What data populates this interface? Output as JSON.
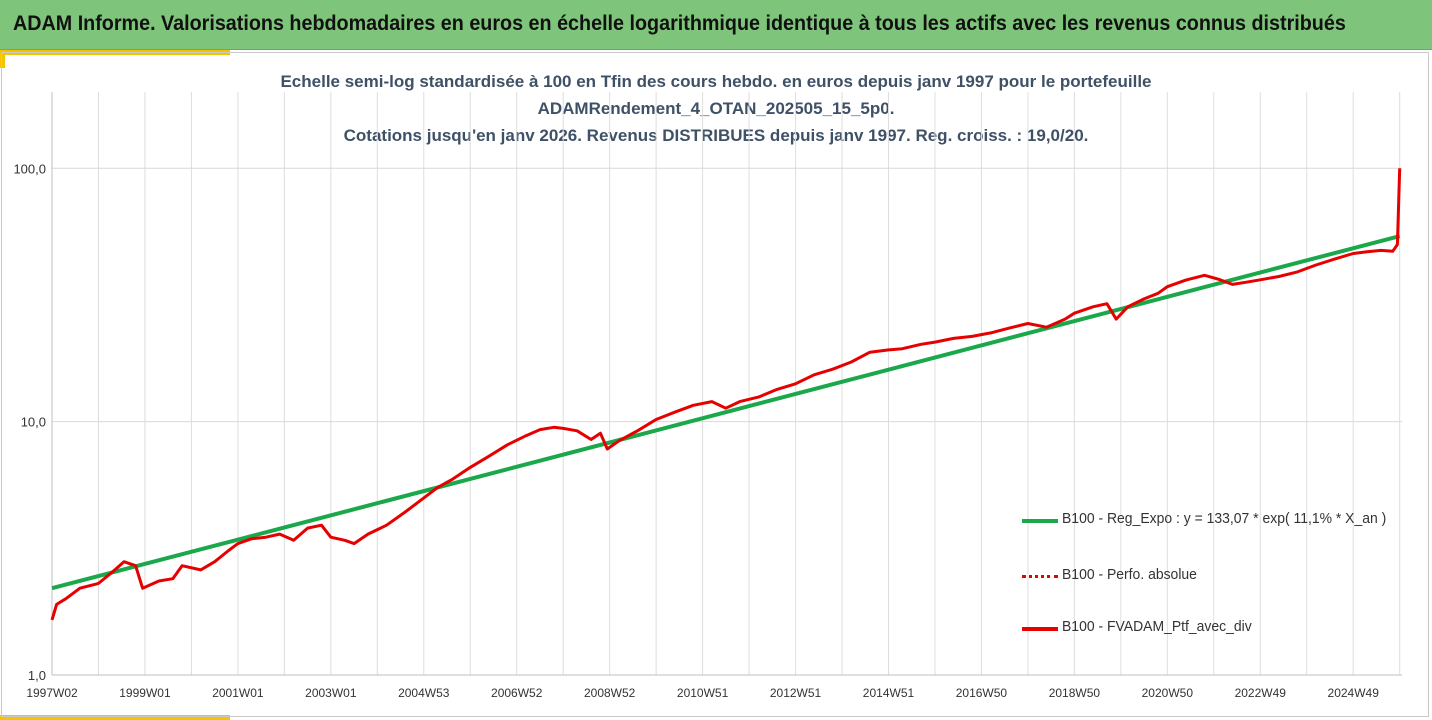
{
  "header": {
    "title": "ADAM Informe. Valorisations hebdomadaires en euros en échelle logarithmique identique à tous les actifs avec les revenus connus distribués"
  },
  "colors": {
    "header_bg": "#7ec47a",
    "accent": "#f5c400",
    "regression": "#1aa84a",
    "series_red": "#e60000"
  },
  "chart_data": {
    "type": "line",
    "title_lines": [
      "Echelle semi-log standardisée à 100 en Tfin des cours hebdo.  en euros depuis janv 1997 pour le portefeuille",
      "ADAMRendement_4_OTAN_202505_15_5p0.",
      "Cotations jusqu'en janv 2026. Revenus DISTRIBUES depuis janv 1997. Reg. croiss. : 19,0/20."
    ],
    "y_scale": "log",
    "ylim": [
      1,
      200
    ],
    "y_ticks": [
      {
        "value": 1,
        "label": "1,0"
      },
      {
        "value": 10,
        "label": "10,0"
      },
      {
        "value": 100,
        "label": "100,0"
      }
    ],
    "x_range": [
      1997.0,
      2026.05
    ],
    "x_ticks": [
      {
        "x": 1997.0,
        "label": "1997W02"
      },
      {
        "x": 1999.0,
        "label": "1999W01"
      },
      {
        "x": 2001.0,
        "label": "2001W01"
      },
      {
        "x": 2003.0,
        "label": "2003W01"
      },
      {
        "x": 2005.0,
        "label": "2004W53"
      },
      {
        "x": 2007.0,
        "label": "2006W52"
      },
      {
        "x": 2009.0,
        "label": "2008W52"
      },
      {
        "x": 2011.0,
        "label": "2010W51"
      },
      {
        "x": 2013.0,
        "label": "2012W51"
      },
      {
        "x": 2015.0,
        "label": "2014W51"
      },
      {
        "x": 2017.0,
        "label": "2016W50"
      },
      {
        "x": 2019.0,
        "label": "2018W50"
      },
      {
        "x": 2021.0,
        "label": "2020W50"
      },
      {
        "x": 2023.0,
        "label": "2022W49"
      },
      {
        "x": 2025.0,
        "label": "2024W49"
      }
    ],
    "grid": {
      "vertical": true,
      "horizontal": true
    },
    "legend_position": "bottom-right",
    "series": [
      {
        "name": "B100 - Reg_Expo : y = 133,07 * exp( 11,1% *  X_an )",
        "style": "solid-green",
        "x": [
          1997.0,
          2026.0
        ],
        "y": [
          2.2,
          54.0
        ]
      },
      {
        "name": "B100 - Perfo. absolue",
        "style": "dotted-red",
        "x": [],
        "y": []
      },
      {
        "name": "B100 - FVADAM_Ptf_avec_div",
        "style": "solid-red",
        "x": [
          1997.0,
          1997.1,
          1997.3,
          1997.6,
          1998.0,
          1998.3,
          1998.55,
          1998.8,
          1998.95,
          1999.3,
          1999.6,
          1999.8,
          2000.2,
          2000.5,
          2000.8,
          2001.0,
          2001.3,
          2001.6,
          2001.9,
          2002.2,
          2002.5,
          2002.8,
          2003.0,
          2003.3,
          2003.5,
          2003.8,
          2004.2,
          2004.6,
          2005.0,
          2005.3,
          2005.6,
          2006.0,
          2006.4,
          2006.8,
          2007.2,
          2007.5,
          2007.8,
          2008.0,
          2008.3,
          2008.6,
          2008.8,
          2008.95,
          2009.2,
          2009.6,
          2010.0,
          2010.4,
          2010.8,
          2011.2,
          2011.5,
          2011.8,
          2012.2,
          2012.6,
          2013.0,
          2013.4,
          2013.8,
          2014.2,
          2014.6,
          2015.0,
          2015.3,
          2015.7,
          2016.0,
          2016.4,
          2016.8,
          2017.2,
          2017.6,
          2018.0,
          2018.4,
          2018.8,
          2019.0,
          2019.4,
          2019.7,
          2019.9,
          2020.15,
          2020.25,
          2020.5,
          2020.8,
          2021.0,
          2021.4,
          2021.8,
          2022.1,
          2022.4,
          2022.7,
          2023.0,
          2023.4,
          2023.8,
          2024.2,
          2024.6,
          2025.0,
          2025.3,
          2025.6,
          2025.85,
          2025.95,
          2026.0
        ],
        "y": [
          1.65,
          1.9,
          2.0,
          2.2,
          2.3,
          2.55,
          2.8,
          2.7,
          2.2,
          2.35,
          2.4,
          2.7,
          2.6,
          2.8,
          3.1,
          3.3,
          3.45,
          3.5,
          3.6,
          3.4,
          3.8,
          3.9,
          3.5,
          3.4,
          3.3,
          3.6,
          3.9,
          4.4,
          5.0,
          5.5,
          5.9,
          6.6,
          7.3,
          8.1,
          8.8,
          9.3,
          9.5,
          9.4,
          9.2,
          8.5,
          9.0,
          7.8,
          8.4,
          9.2,
          10.2,
          10.9,
          11.6,
          12.0,
          11.3,
          12.0,
          12.5,
          13.4,
          14.1,
          15.3,
          16.1,
          17.2,
          18.8,
          19.2,
          19.4,
          20.2,
          20.6,
          21.3,
          21.7,
          22.4,
          23.4,
          24.4,
          23.6,
          25.4,
          26.8,
          28.4,
          29.2,
          25.4,
          28.4,
          29.0,
          30.5,
          32.1,
          34.1,
          36.2,
          37.8,
          36.5,
          34.8,
          35.5,
          36.3,
          37.4,
          39.0,
          41.5,
          43.8,
          46.1,
          46.8,
          47.4,
          47.0,
          50.0,
          100.0
        ]
      }
    ]
  }
}
